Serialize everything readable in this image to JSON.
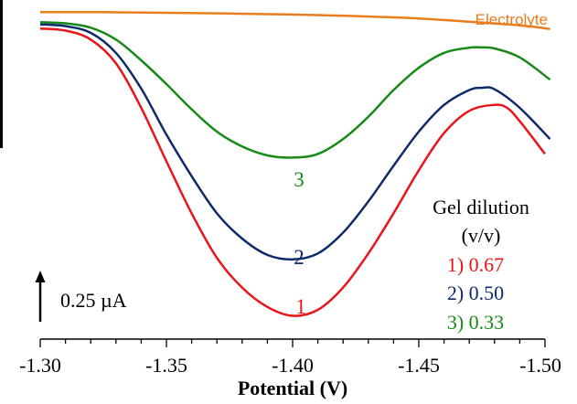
{
  "chart_data": {
    "type": "line",
    "xlabel": "Potential (V)",
    "x_ticks": [
      -1.3,
      -1.35,
      -1.4,
      -1.45,
      -1.5
    ],
    "x_tick_labels": [
      "-1.30",
      "-1.35",
      "-1.40",
      "-1.45",
      "-1.50"
    ],
    "xlim": [
      -1.3,
      -1.5
    ],
    "x_minor_step": 0.01,
    "grid": false,
    "scale_bar": {
      "label": "0.25 µA",
      "value_uA": 0.25
    },
    "legend_title": "Gel dilution",
    "legend_subtitle": "(v/v)",
    "series": [
      {
        "name": "Electrolyte",
        "label": "Electrolyte",
        "color": "#e87d1e",
        "x": [
          -1.3,
          -1.325,
          -1.35,
          -1.375,
          -1.4,
          -1.425,
          -1.45,
          -1.47,
          -1.49,
          -1.502
        ],
        "y": [
          0.005,
          0.004,
          0.0,
          -0.005,
          -0.012,
          -0.022,
          -0.038,
          -0.06,
          -0.085,
          -0.108
        ]
      },
      {
        "name": "3",
        "label": "3",
        "legend_text": "3) 0.33",
        "color": "#178a17",
        "x": [
          -1.3,
          -1.31,
          -1.32,
          -1.33,
          -1.34,
          -1.35,
          -1.36,
          -1.37,
          -1.38,
          -1.39,
          -1.4,
          -1.41,
          -1.42,
          -1.43,
          -1.44,
          -1.45,
          -1.46,
          -1.47,
          -1.475,
          -1.48,
          -1.49,
          -1.502
        ],
        "y": [
          -0.063,
          -0.071,
          -0.1,
          -0.18,
          -0.32,
          -0.48,
          -0.65,
          -0.8,
          -0.9,
          -0.96,
          -0.975,
          -0.95,
          -0.85,
          -0.7,
          -0.52,
          -0.37,
          -0.27,
          -0.235,
          -0.233,
          -0.24,
          -0.3,
          -0.45
        ]
      },
      {
        "name": "2",
        "label": "2",
        "legend_text": "2) 0.50",
        "color": "#0f2a6b",
        "x": [
          -1.3,
          -1.31,
          -1.32,
          -1.33,
          -1.34,
          -1.35,
          -1.36,
          -1.37,
          -1.38,
          -1.39,
          -1.4,
          -1.41,
          -1.42,
          -1.43,
          -1.44,
          -1.45,
          -1.46,
          -1.47,
          -1.475,
          -1.48,
          -1.49,
          -1.502
        ],
        "y": [
          -0.078,
          -0.09,
          -0.135,
          -0.27,
          -0.51,
          -0.82,
          -1.1,
          -1.35,
          -1.52,
          -1.63,
          -1.66,
          -1.62,
          -1.48,
          -1.27,
          -1.03,
          -0.8,
          -0.62,
          -0.52,
          -0.505,
          -0.515,
          -0.64,
          -0.85
        ]
      },
      {
        "name": "1",
        "label": "1",
        "legend_text": "1) 0.67",
        "color": "#e8151b",
        "x": [
          -1.3,
          -1.31,
          -1.32,
          -1.33,
          -1.34,
          -1.35,
          -1.36,
          -1.37,
          -1.38,
          -1.39,
          -1.4,
          -1.41,
          -1.42,
          -1.43,
          -1.44,
          -1.45,
          -1.46,
          -1.47,
          -1.48,
          -1.485,
          -1.49,
          -1.5
        ],
        "y": [
          -0.106,
          -0.12,
          -0.18,
          -0.34,
          -0.64,
          -1.0,
          -1.35,
          -1.65,
          -1.85,
          -1.98,
          -2.04,
          -2.0,
          -1.85,
          -1.62,
          -1.35,
          -1.06,
          -0.81,
          -0.66,
          -0.62,
          -0.64,
          -0.73,
          -0.95
        ]
      }
    ]
  }
}
